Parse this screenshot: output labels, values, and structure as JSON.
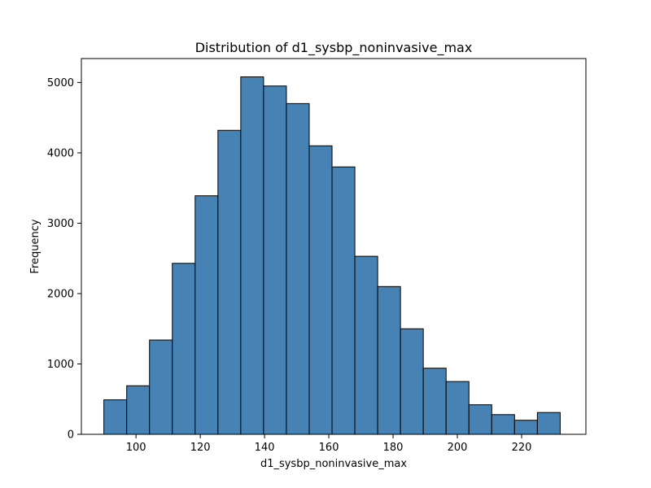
{
  "chart_data": {
    "type": "bar",
    "title": "Distribution of d1_sysbp_noninvasive_max",
    "xlabel": "d1_sysbp_noninvasive_max",
    "ylabel": "Frequency",
    "xlim": [
      83,
      240
    ],
    "ylim": [
      0,
      5340
    ],
    "bin_edges": [
      90.0,
      97.1,
      104.2,
      111.3,
      118.4,
      125.5,
      132.6,
      139.7,
      146.8,
      153.9,
      161.0,
      168.1,
      175.2,
      182.3,
      189.4,
      196.5,
      203.6,
      210.7,
      217.8,
      224.9,
      232.0
    ],
    "values": [
      490,
      690,
      1340,
      2430,
      3390,
      4320,
      5080,
      4950,
      4700,
      4100,
      3800,
      2530,
      2100,
      1500,
      940,
      750,
      420,
      280,
      200,
      310
    ],
    "x_ticks": [
      100,
      120,
      140,
      160,
      180,
      200,
      220
    ],
    "y_ticks": [
      0,
      1000,
      2000,
      3000,
      4000,
      5000
    ],
    "bar_color": "#4682b4",
    "edge_color": "#000000",
    "grid": false,
    "legend": "none"
  }
}
